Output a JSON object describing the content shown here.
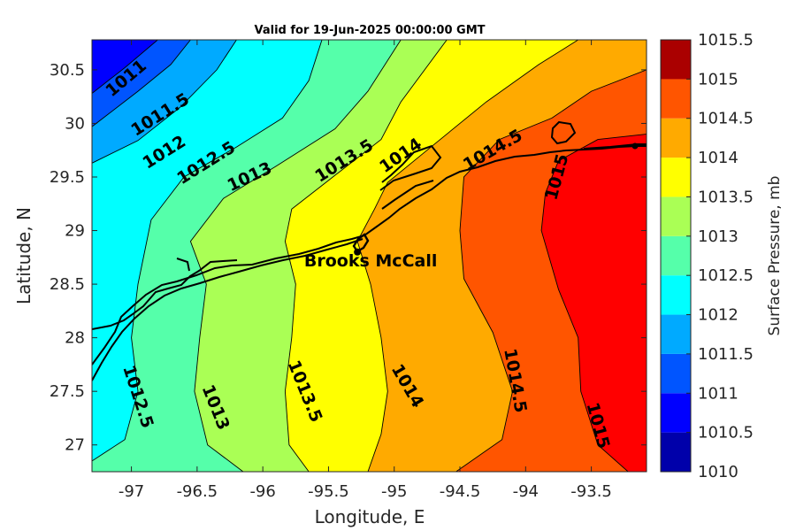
{
  "title": "Valid for 19-Jun-2025 00:00:00 GMT",
  "xlabel": "Longitude, E",
  "ylabel": "Latitude, N",
  "colorbar_label": "Surface Pressure, mb",
  "station": {
    "name": "Brooks McCall",
    "lon": -95.28,
    "lat": 28.8
  },
  "x_ticks": [
    "-97",
    "-96.5",
    "-96",
    "-95.5",
    "-95",
    "-94.5",
    "-94",
    "-93.5"
  ],
  "y_ticks": [
    "27",
    "27.5",
    "28",
    "28.5",
    "29",
    "29.5",
    "30",
    "30.5"
  ],
  "colorbar_ticks": [
    "1010",
    "1010.5",
    "1011",
    "1011.5",
    "1012",
    "1012.5",
    "1013",
    "1013.5",
    "1014",
    "1014.5",
    "1015",
    "1015.5"
  ],
  "contour_labels": [
    "1011",
    "1011.5",
    "1012",
    "1012.5",
    "1013",
    "1013.5",
    "1014",
    "1014.5",
    "1015",
    "1012.5",
    "1013",
    "1013.5",
    "1014",
    "1014.5",
    "1015"
  ],
  "chart_data": {
    "type": "heatmap",
    "description_field": "surface pressure contour map",
    "xlim": [
      -97.3,
      -93.08
    ],
    "ylim": [
      26.75,
      30.78
    ],
    "clim": [
      1010,
      1015.5
    ],
    "contour_interval": 0.5,
    "levels": [
      1011,
      1011.5,
      1012,
      1012.5,
      1013,
      1013.5,
      1014,
      1014.5,
      1015
    ],
    "contours": [
      {
        "level": 1011,
        "points": [
          [
            -97.3,
            30.28
          ],
          [
            -97.05,
            30.52
          ],
          [
            -96.8,
            30.78
          ]
        ]
      },
      {
        "level": 1011.5,
        "points": [
          [
            -97.3,
            29.97
          ],
          [
            -96.95,
            30.3
          ],
          [
            -96.7,
            30.55
          ],
          [
            -96.55,
            30.78
          ]
        ]
      },
      {
        "level": 1012,
        "points": [
          [
            -97.3,
            29.63
          ],
          [
            -96.95,
            29.84
          ],
          [
            -96.63,
            30.15
          ],
          [
            -96.35,
            30.5
          ],
          [
            -96.2,
            30.78
          ]
        ]
      },
      {
        "level": 1012.5,
        "points": [
          [
            -97.3,
            26.85
          ],
          [
            -97.05,
            27.05
          ],
          [
            -96.95,
            27.5
          ],
          [
            -97.0,
            28.0
          ],
          [
            -96.95,
            28.5
          ],
          [
            -96.85,
            29.1
          ],
          [
            -96.6,
            29.5
          ],
          [
            -96.2,
            29.78
          ],
          [
            -95.85,
            30.05
          ],
          [
            -95.65,
            30.4
          ],
          [
            -95.55,
            30.78
          ]
        ]
      },
      {
        "level": 1013,
        "points": [
          [
            -96.15,
            26.75
          ],
          [
            -96.42,
            27.0
          ],
          [
            -96.52,
            27.5
          ],
          [
            -96.48,
            28.0
          ],
          [
            -96.43,
            28.5
          ],
          [
            -96.55,
            28.9
          ],
          [
            -96.3,
            29.3
          ],
          [
            -95.9,
            29.6
          ],
          [
            -95.45,
            29.95
          ],
          [
            -95.2,
            30.3
          ],
          [
            -94.95,
            30.78
          ]
        ]
      },
      {
        "level": 1013.5,
        "points": [
          [
            -95.65,
            26.75
          ],
          [
            -95.8,
            27.0
          ],
          [
            -95.83,
            27.5
          ],
          [
            -95.78,
            28.0
          ],
          [
            -95.75,
            28.5
          ],
          [
            -95.83,
            28.9
          ],
          [
            -95.78,
            29.2
          ],
          [
            -95.52,
            29.45
          ],
          [
            -95.1,
            29.85
          ],
          [
            -94.95,
            30.2
          ],
          [
            -94.6,
            30.78
          ]
        ]
      },
      {
        "level": 1014,
        "points": [
          [
            -95.2,
            26.75
          ],
          [
            -95.1,
            27.1
          ],
          [
            -95.05,
            27.5
          ],
          [
            -95.1,
            28.0
          ],
          [
            -95.18,
            28.5
          ],
          [
            -95.28,
            28.9
          ],
          [
            -95.15,
            29.2
          ],
          [
            -95.05,
            29.45
          ],
          [
            -94.75,
            29.75
          ],
          [
            -94.3,
            30.2
          ],
          [
            -93.9,
            30.55
          ],
          [
            -93.6,
            30.78
          ]
        ]
      },
      {
        "level": 1014.5,
        "points": [
          [
            -94.53,
            26.75
          ],
          [
            -94.18,
            27.05
          ],
          [
            -94.1,
            27.5
          ],
          [
            -94.25,
            28.05
          ],
          [
            -94.47,
            28.55
          ],
          [
            -94.5,
            29.0
          ],
          [
            -94.47,
            29.5
          ],
          [
            -94.2,
            29.85
          ],
          [
            -93.8,
            30.05
          ],
          [
            -93.5,
            30.3
          ],
          [
            -93.08,
            30.5
          ]
        ]
      },
      {
        "level": 1015,
        "points": [
          [
            -93.22,
            26.75
          ],
          [
            -93.45,
            27.0
          ],
          [
            -93.58,
            27.5
          ],
          [
            -93.6,
            28.0
          ],
          [
            -93.75,
            28.45
          ],
          [
            -93.88,
            29.0
          ],
          [
            -93.85,
            29.35
          ],
          [
            -93.75,
            29.65
          ],
          [
            -93.45,
            29.85
          ],
          [
            -93.08,
            29.9
          ]
        ]
      }
    ],
    "contour_label_positions": [
      {
        "text": "1011",
        "lon": -97.04,
        "lat": 30.42,
        "angle": -40
      },
      {
        "text": "1011.5",
        "lon": -96.78,
        "lat": 30.08,
        "angle": -32
      },
      {
        "text": "1012",
        "lon": -96.75,
        "lat": 29.73,
        "angle": -32
      },
      {
        "text": "1012.5",
        "lon": -96.43,
        "lat": 29.63,
        "angle": -32
      },
      {
        "text": "1013",
        "lon": -96.1,
        "lat": 29.5,
        "angle": -25
      },
      {
        "text": "1013.5",
        "lon": -95.38,
        "lat": 29.65,
        "angle": -32
      },
      {
        "text": "1014",
        "lon": -94.95,
        "lat": 29.7,
        "angle": -35
      },
      {
        "text": "1014.5",
        "lon": -94.25,
        "lat": 29.75,
        "angle": -30
      },
      {
        "text": "1015",
        "lon": -93.76,
        "lat": 29.5,
        "angle": -75
      },
      {
        "text": "1012.5",
        "lon": -96.95,
        "lat": 27.45,
        "angle": 72
      },
      {
        "text": "1013",
        "lon": -96.36,
        "lat": 27.35,
        "angle": 68
      },
      {
        "text": "1013.5",
        "lon": -95.68,
        "lat": 27.5,
        "angle": 68
      },
      {
        "text": "1014",
        "lon": -94.9,
        "lat": 27.55,
        "angle": 60
      },
      {
        "text": "1014.5",
        "lon": -94.08,
        "lat": 27.6,
        "angle": 80
      },
      {
        "text": "1015",
        "lon": -93.45,
        "lat": 27.18,
        "angle": 75
      }
    ],
    "colors": {
      "1010-1010.5": "#0000aa",
      "1010.5-1011": "#0000ff",
      "1011-1011.5": "#0055ff",
      "1011.5-1012": "#00aaff",
      "1012-1012.5": "#00ffff",
      "1012.5-1013": "#55ffaa",
      "1013-1013.5": "#aaff55",
      "1013.5-1014": "#ffff00",
      "1014-1014.5": "#ffaa00",
      "1014.5-1015": "#ff5500",
      "1015-1015.5": "#ff0000",
      "1015.5+": "#aa0000"
    },
    "grid": false
  }
}
